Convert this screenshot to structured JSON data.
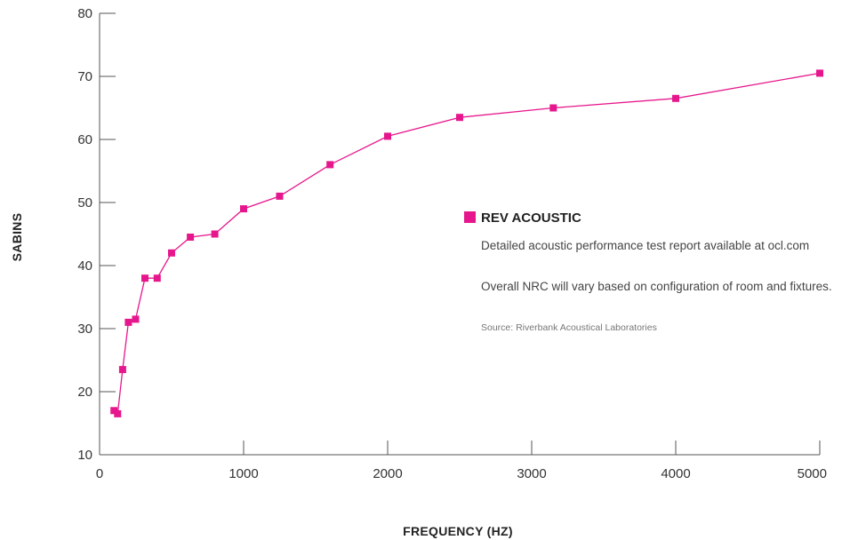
{
  "chart_data": {
    "type": "line",
    "title": "",
    "xlabel": "FREQUENCY (HZ)",
    "ylabel": "SABINS",
    "xlim": [
      0,
      5000
    ],
    "ylim": [
      10,
      80
    ],
    "x_ticks": [
      0,
      1000,
      2000,
      3000,
      4000,
      5000
    ],
    "y_ticks": [
      10,
      20,
      30,
      40,
      50,
      60,
      70,
      80
    ],
    "grid": false,
    "legend_position": "right",
    "series": [
      {
        "name": "REV ACOUSTIC",
        "color": "#e6178c",
        "marker": "square",
        "x": [
          100,
          125,
          160,
          200,
          250,
          315,
          400,
          500,
          630,
          800,
          1000,
          1250,
          1600,
          2000,
          2500,
          3150,
          4000,
          5000
        ],
        "y": [
          17,
          16.5,
          23.5,
          31,
          31.5,
          38,
          38,
          42,
          44.5,
          45,
          49,
          51,
          56,
          60.5,
          63.5,
          65,
          66.5,
          70.5
        ]
      }
    ],
    "notes": [
      "Detailed acoustic performance test report available at ocl.com",
      "Overall NRC will vary based on configuration of room and fixtures."
    ],
    "source": "Source: Riverbank Acoustical Laboratories"
  }
}
